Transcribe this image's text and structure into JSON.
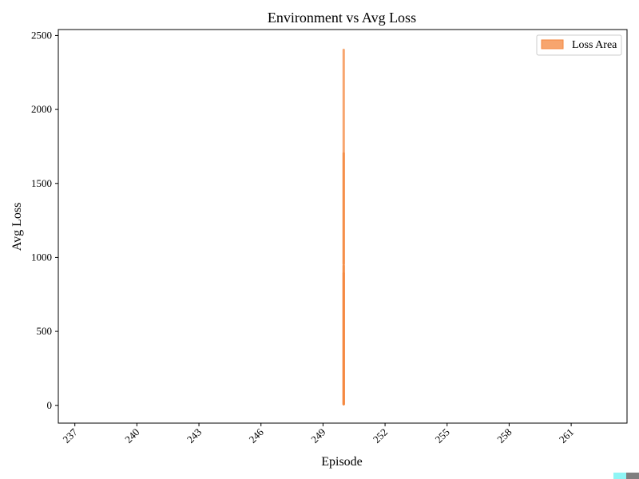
{
  "chart_data": {
    "type": "area",
    "title": "Environment vs Avg Loss",
    "xlabel": "Episode",
    "ylabel": "Avg Loss",
    "xlim": [
      236.2,
      263.7
    ],
    "ylim": [
      -120,
      2540
    ],
    "xticks": [
      237,
      240,
      243,
      246,
      249,
      252,
      255,
      258,
      261
    ],
    "yticks": [
      0,
      500,
      1000,
      1500,
      2000,
      2500
    ],
    "grid": false,
    "legend_position": "top-right",
    "series": [
      {
        "name": "Loss Area",
        "color": "#f4873e",
        "x": [
          250,
          250,
          250,
          250,
          250
        ],
        "y": [
          0,
          900,
          950,
          1710,
          2410
        ],
        "y_from": [
          0,
          0,
          0,
          0,
          950
        ]
      }
    ]
  },
  "colors": {
    "area_fill": "#f4873e",
    "corner_cyan": "#8ff5f5",
    "corner_gray": "#7f7f7f"
  }
}
